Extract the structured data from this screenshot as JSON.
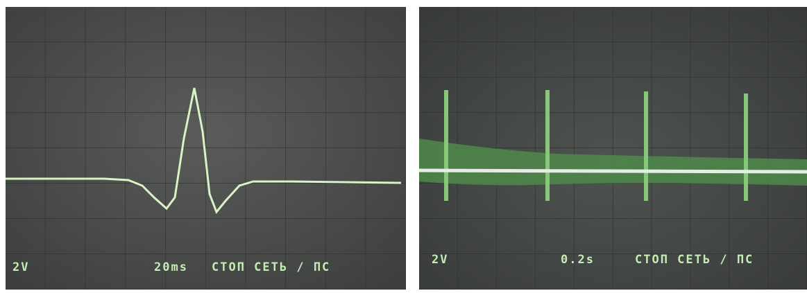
{
  "panels": [
    {
      "volts": "2V",
      "timebase": "20ms",
      "status": "СТОП СЕТЬ / ПС"
    },
    {
      "volts": "2V",
      "timebase": "0.2s",
      "status": "СТОП СЕТЬ / ПС"
    }
  ]
}
